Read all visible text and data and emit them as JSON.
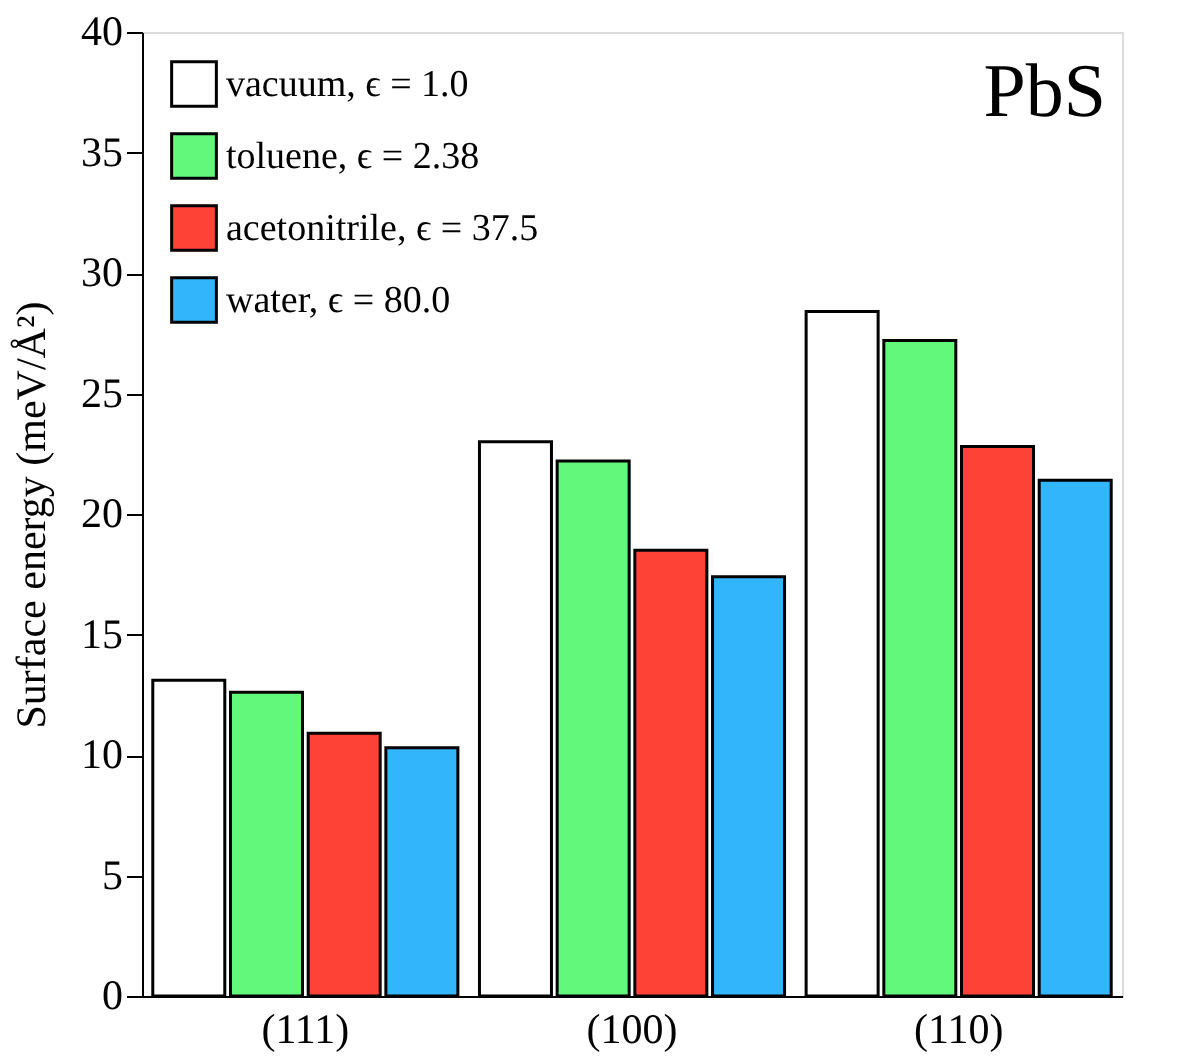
{
  "chart_data": {
    "type": "bar",
    "ylabel": "Surface energy (meV/Å²)",
    "categories": [
      "(111)",
      "(100)",
      "(110)"
    ],
    "series": [
      {
        "name": "vacuum, ϵ = 1.0",
        "color": "#ffffff",
        "values": [
          13.1,
          23.0,
          28.4
        ]
      },
      {
        "name": "toluene, ϵ = 2.38",
        "color": "#61f87c",
        "values": [
          12.6,
          22.2,
          27.2
        ]
      },
      {
        "name": "acetonitrile, ϵ = 37.5",
        "color": "#ff4136",
        "values": [
          10.9,
          18.5,
          22.8
        ]
      },
      {
        "name": "water, ϵ = 80.0",
        "color": "#33b5fb",
        "values": [
          10.3,
          17.4,
          21.4
        ]
      }
    ],
    "ylim": [
      0,
      40
    ],
    "yticks": [
      0,
      5,
      10,
      15,
      20,
      25,
      30,
      35,
      40
    ],
    "grid": false,
    "legend": "top left",
    "annotations": [
      "PbS"
    ]
  }
}
